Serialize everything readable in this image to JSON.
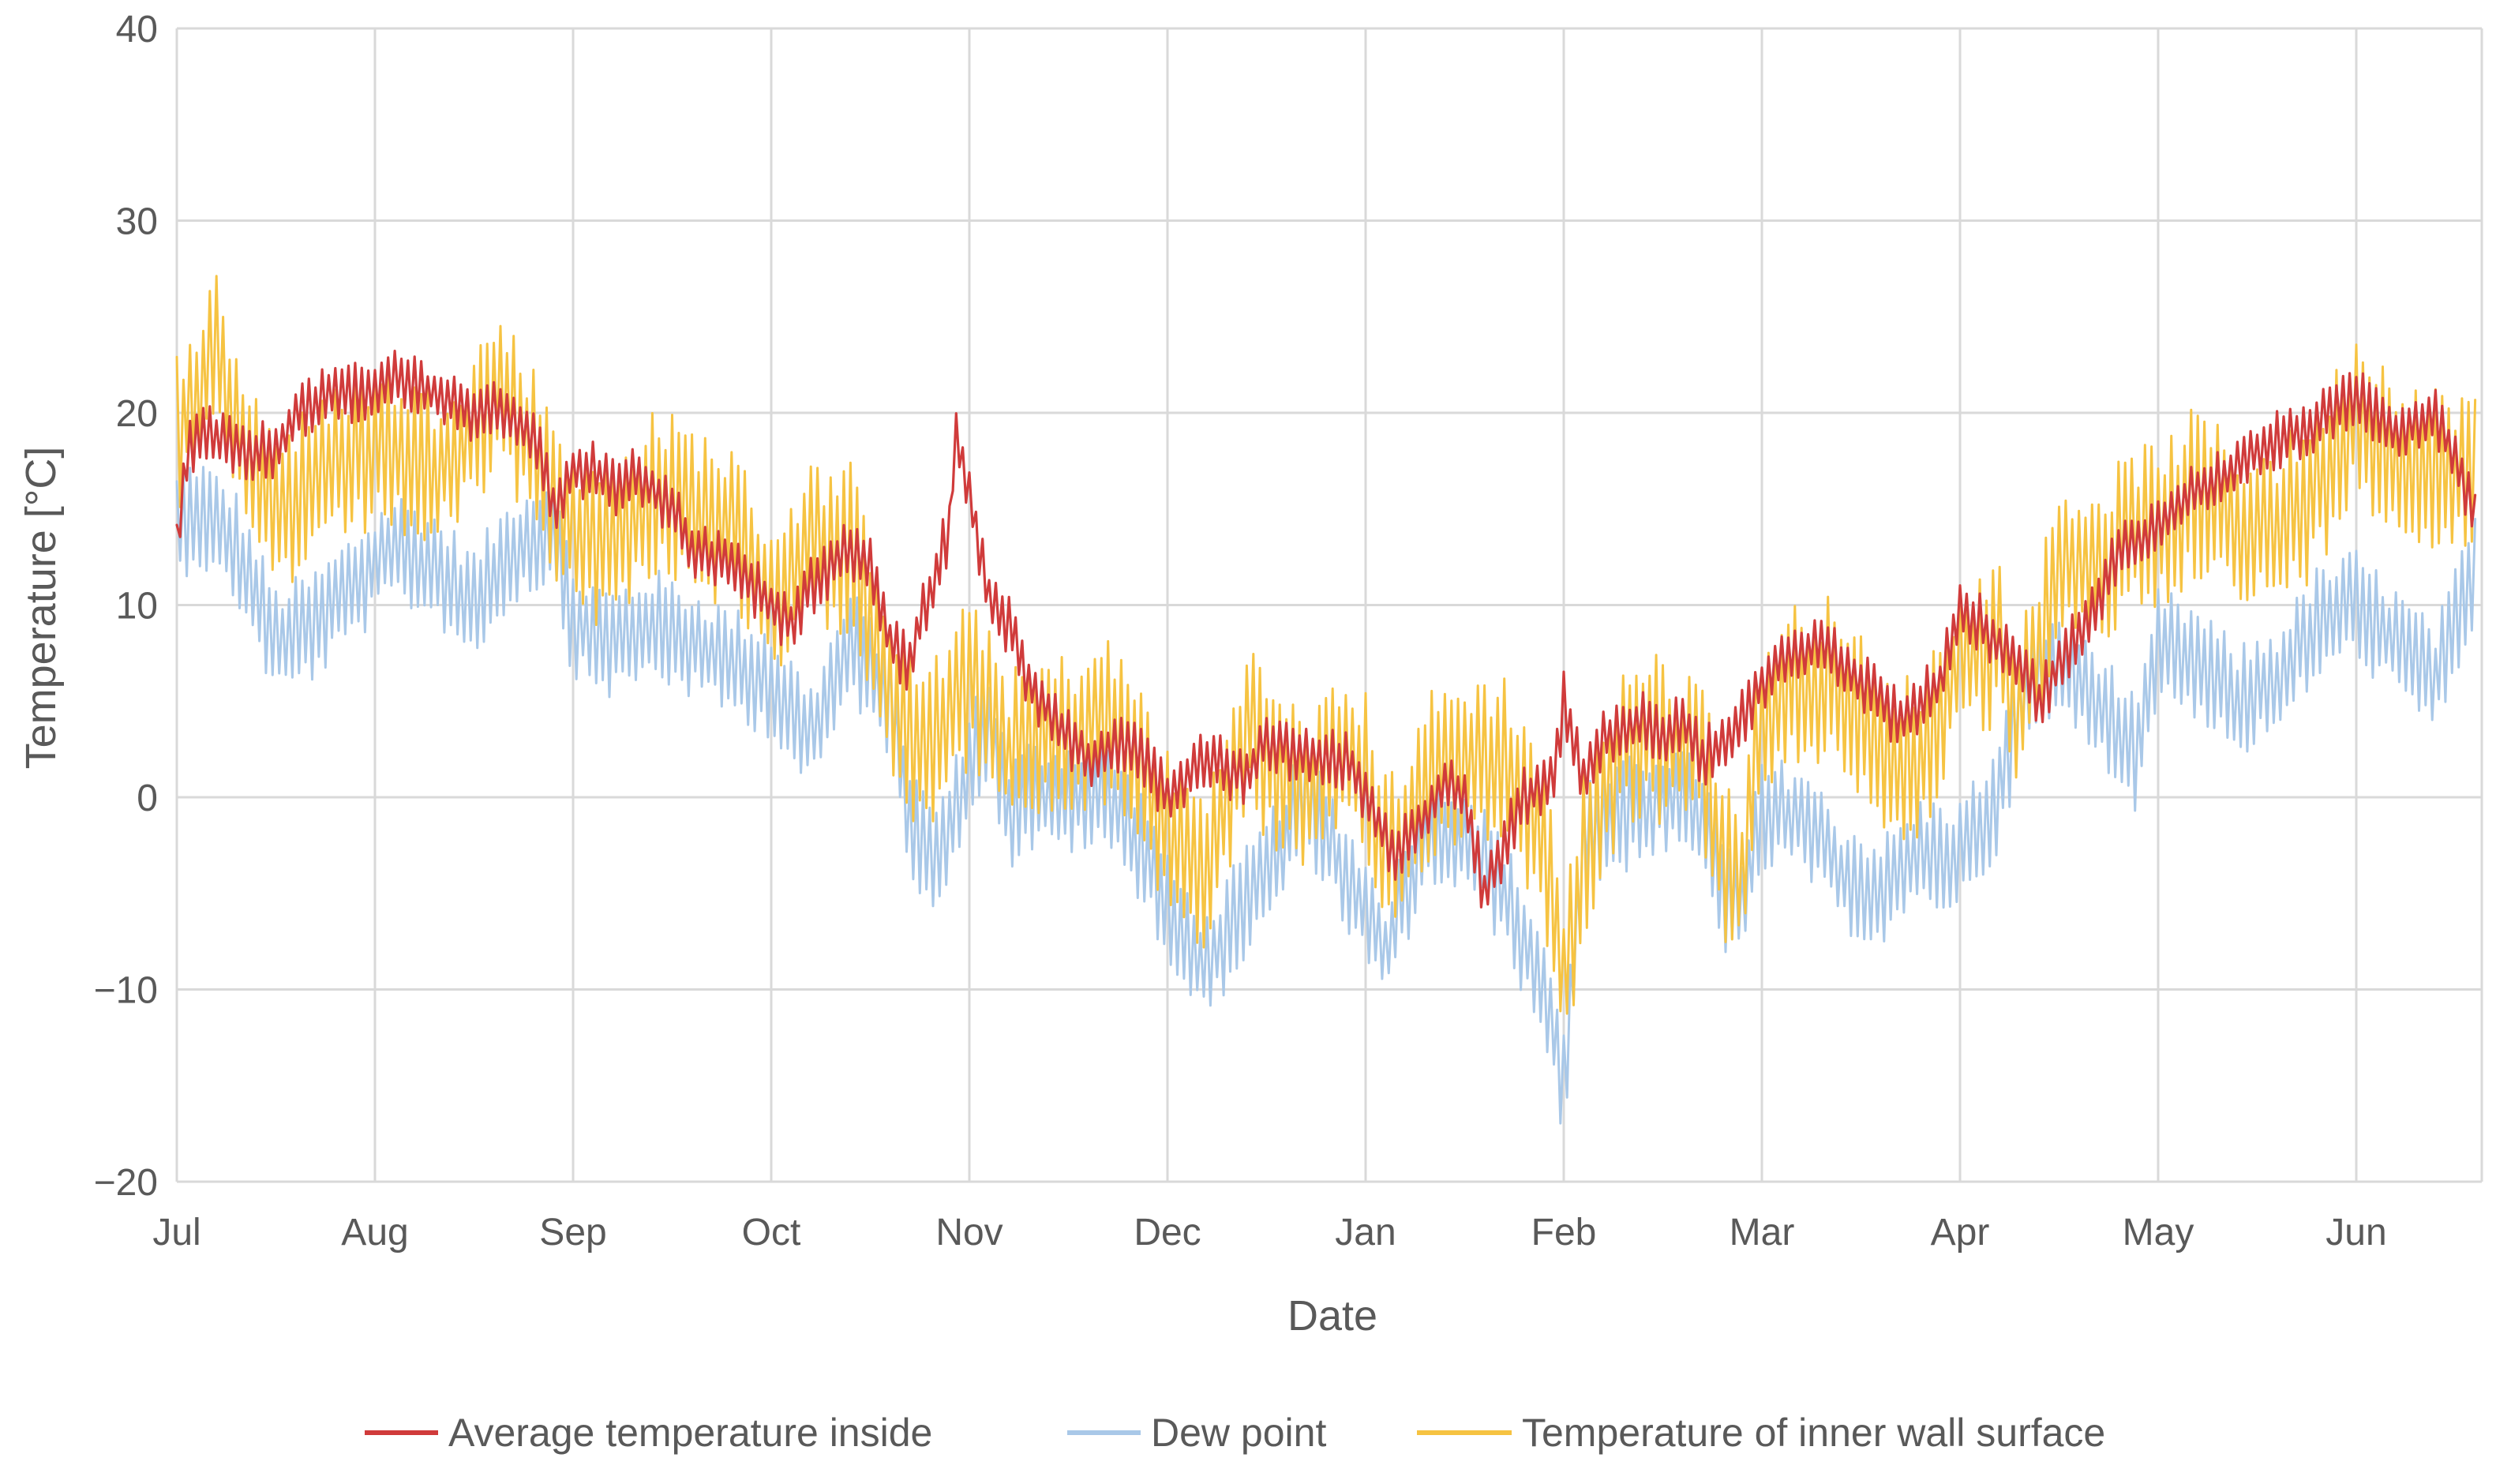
{
  "chart_data": {
    "type": "line",
    "title": "",
    "xlabel": "Date",
    "ylabel": "Temperature  [°C]",
    "ylim": [
      -20,
      40
    ],
    "yticks": [
      40,
      30,
      20,
      10,
      0,
      -10,
      -20
    ],
    "ytick_labels": [
      "40",
      "30",
      "20",
      "10",
      "0",
      "−10",
      "−20"
    ],
    "x_unit": "month index (0 = Jul)",
    "xlim": [
      0,
      11.6
    ],
    "categories": [
      "Jul",
      "Aug",
      "Sep",
      "Oct",
      "Nov",
      "Dec",
      "Jan",
      "Feb",
      "Mar",
      "Apr",
      "May",
      "Jun"
    ],
    "grid": true,
    "legend_position": "bottom",
    "series": [
      {
        "name": "Average temperature inside",
        "color": "#d03b3b",
        "daily_swing": 1.6,
        "x": [
          0,
          0.05,
          0.15,
          0.3,
          0.5,
          0.6,
          0.8,
          1.0,
          1.1,
          1.3,
          1.5,
          1.6,
          1.8,
          1.9,
          2.0,
          2.1,
          2.2,
          2.3,
          2.5,
          2.6,
          2.8,
          3.0,
          3.1,
          3.2,
          3.4,
          3.5,
          3.6,
          3.7,
          3.75,
          3.9,
          3.93,
          4.0,
          4.1,
          4.2,
          4.3,
          4.5,
          4.6,
          4.8,
          5.0,
          5.2,
          5.4,
          5.5,
          5.7,
          5.9,
          6.0,
          6.1,
          6.15,
          6.3,
          6.4,
          6.5,
          6.6,
          6.8,
          6.95,
          7.0,
          7.1,
          7.2,
          7.4,
          7.5,
          7.6,
          7.7,
          7.9,
          8.0,
          8.1,
          8.3,
          8.5,
          8.7,
          8.9,
          9.0,
          9.1,
          9.3,
          9.4,
          9.5,
          9.7,
          9.8,
          10.0,
          10.2,
          10.4,
          10.5,
          10.7,
          10.9,
          11.0,
          11.2,
          11.4,
          11.6
        ],
        "values": [
          13,
          18,
          19,
          18,
          18,
          20,
          21,
          21,
          22,
          21,
          20,
          20,
          19,
          15,
          17,
          17,
          16,
          17,
          15,
          13,
          12,
          10,
          9,
          11,
          13,
          12,
          8,
          7,
          9,
          14,
          19,
          16,
          10,
          9,
          6,
          3,
          2,
          3,
          0,
          2,
          1,
          3,
          2,
          2,
          0,
          -2,
          -3,
          -1,
          1,
          0,
          -5,
          0,
          1,
          5,
          1,
          3,
          4,
          3,
          4,
          2,
          4,
          6,
          7,
          8,
          6,
          4,
          6,
          10,
          9,
          7,
          5,
          7,
          10,
          13,
          14,
          16,
          17,
          18,
          19,
          20,
          21,
          19,
          20,
          15
        ]
      },
      {
        "name": "Dew point",
        "color": "#a9c8e8",
        "daily_swing": 3.0,
        "x": [
          0,
          0.1,
          0.3,
          0.5,
          0.7,
          0.9,
          1.1,
          1.3,
          1.5,
          1.7,
          1.9,
          2.0,
          2.2,
          2.4,
          2.6,
          2.8,
          3.0,
          3.2,
          3.4,
          3.6,
          3.7,
          3.8,
          3.9,
          4.0,
          4.1,
          4.2,
          4.3,
          4.5,
          4.7,
          4.9,
          5.0,
          5.2,
          5.3,
          5.5,
          5.7,
          5.9,
          6.0,
          6.1,
          6.2,
          6.3,
          6.5,
          6.7,
          6.9,
          7.0,
          7.1,
          7.3,
          7.5,
          7.7,
          7.8,
          7.9,
          8.0,
          8.2,
          8.4,
          8.6,
          8.8,
          9.0,
          9.2,
          9.3,
          9.5,
          9.7,
          9.9,
          10.0,
          10.2,
          10.4,
          10.6,
          10.8,
          11.0,
          11.2,
          11.4,
          11.6
        ],
        "values": [
          14,
          15,
          13,
          8,
          9,
          11,
          13,
          12,
          10,
          13,
          14,
          9,
          8,
          9,
          8,
          7,
          6,
          3,
          8,
          5,
          -1,
          -3,
          -2,
          2,
          4,
          -1,
          0,
          0,
          0,
          -3,
          -6,
          -9,
          -7,
          -4,
          0,
          -4,
          -6,
          -8,
          -5,
          -2,
          -2,
          -5,
          -10,
          -15,
          -2,
          -1,
          0,
          -1,
          -5,
          -6,
          -1,
          -1,
          -4,
          -5,
          -3,
          -3,
          0,
          5,
          7,
          5,
          2,
          8,
          7,
          5,
          6,
          9,
          10,
          8,
          6,
          12
        ]
      },
      {
        "name": "Temperature of inner wall surface",
        "color": "#f6c342",
        "daily_swing": 4.5,
        "x": [
          0,
          0.1,
          0.2,
          0.3,
          0.5,
          0.7,
          0.9,
          1.1,
          1.3,
          1.5,
          1.6,
          1.7,
          1.8,
          2.0,
          2.2,
          2.4,
          2.6,
          2.8,
          3.0,
          3.2,
          3.4,
          3.6,
          3.7,
          3.8,
          3.9,
          4.0,
          4.1,
          4.2,
          4.3,
          4.5,
          4.7,
          4.9,
          5.0,
          5.2,
          5.4,
          5.5,
          5.7,
          5.9,
          6.0,
          6.1,
          6.2,
          6.3,
          6.5,
          6.7,
          6.9,
          7.0,
          7.1,
          7.3,
          7.5,
          7.7,
          7.8,
          7.9,
          8.0,
          8.2,
          8.4,
          8.6,
          8.8,
          9.0,
          9.2,
          9.3,
          9.5,
          9.7,
          9.9,
          10.0,
          10.2,
          10.4,
          10.6,
          10.8,
          10.9,
          11.0,
          11.2,
          11.4,
          11.6
        ],
        "values": [
          19,
          21,
          23,
          19,
          15,
          16,
          18,
          18,
          17,
          19,
          21,
          20,
          18,
          14,
          13,
          16,
          15,
          14,
          10,
          13,
          13,
          6,
          3,
          3,
          4,
          6,
          5,
          2,
          3,
          3,
          4,
          1,
          -2,
          -4,
          4,
          2,
          0,
          2,
          1,
          -3,
          -2,
          1,
          2,
          2,
          -2,
          -10,
          -3,
          3,
          3,
          2,
          -3,
          -4,
          4,
          6,
          6,
          2,
          2,
          7,
          8,
          4,
          12,
          12,
          14,
          14,
          16,
          14,
          14,
          16,
          18,
          20,
          18,
          17,
          17
        ]
      }
    ]
  },
  "legend": {
    "items": [
      {
        "label": "Average temperature inside",
        "color": "#d03b3b"
      },
      {
        "label": "Dew point",
        "color": "#a9c8e8"
      },
      {
        "label": "Temperature of inner wall surface",
        "color": "#f6c342"
      }
    ]
  }
}
